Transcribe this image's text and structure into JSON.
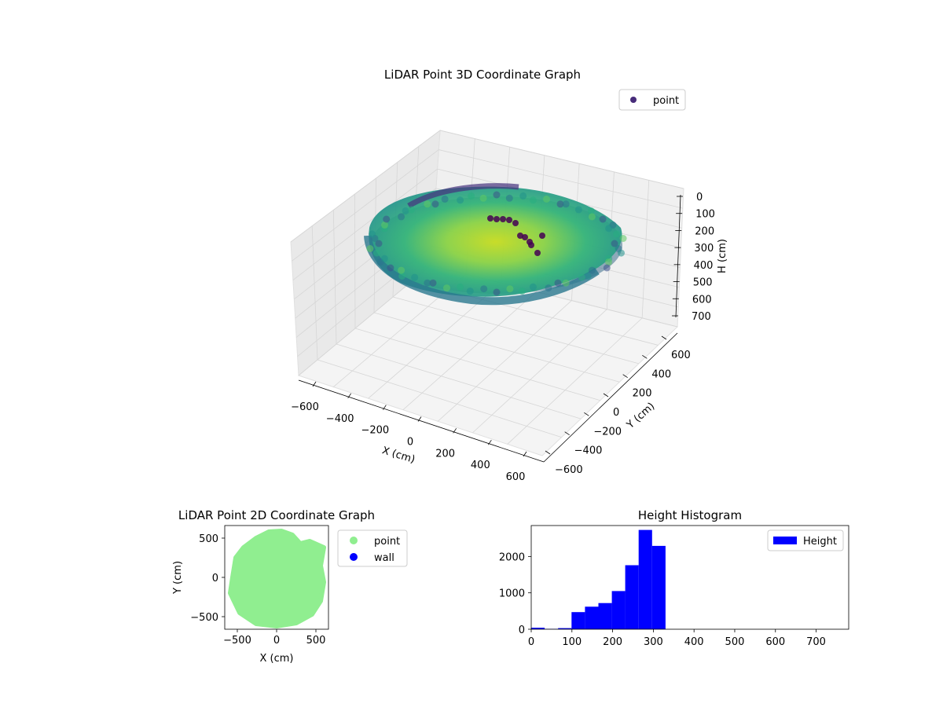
{
  "chart_data": [
    {
      "type": "scatter3d",
      "title": "LiDAR Point 3D Coordinate Graph",
      "xlabel": "X (cm)",
      "ylabel": "Y (cm)",
      "zlabel": "H (cm)",
      "xticks": [
        "−600",
        "−400",
        "−200",
        "0",
        "200",
        "400",
        "600"
      ],
      "yticks": [
        "−600",
        "−400",
        "−200",
        "0",
        "200",
        "400",
        "600"
      ],
      "zticks": [
        "0",
        "100",
        "200",
        "300",
        "400",
        "500",
        "600",
        "700"
      ],
      "xlim": [
        -650,
        650
      ],
      "ylim": [
        -650,
        650
      ],
      "zlim": [
        0,
        750
      ],
      "z_inverted": true,
      "grid": true,
      "legend": {
        "placement": "top-right",
        "entries": [
          {
            "label": "point",
            "color": "#472c7a"
          }
        ]
      },
      "colormap": "viridis",
      "series": [
        {
          "name": "point",
          "description_points": [
            {
              "x": -500,
              "y": 0,
              "h": 280
            },
            {
              "x": 0,
              "y": -450,
              "h": 260
            },
            {
              "x": 450,
              "y": 0,
              "h": 290
            },
            {
              "x": 0,
              "y": 500,
              "h": 100
            },
            {
              "x": 0,
              "y": 0,
              "h": 320
            }
          ]
        }
      ]
    },
    {
      "type": "scatter",
      "title": "LiDAR Point 2D Coordinate Graph",
      "xlabel": "X (cm)",
      "ylabel": "Y (cm)",
      "xticks": [
        -500,
        0,
        500
      ],
      "yticks": [
        -500,
        0,
        500
      ],
      "xlim": [
        -660,
        660
      ],
      "ylim": [
        -660,
        660
      ],
      "legend": {
        "placement": "outside-right",
        "entries": [
          {
            "label": "point",
            "color": "#90ee90"
          },
          {
            "label": "wall",
            "color": "#0000ff"
          }
        ]
      },
      "series": [
        {
          "name": "point",
          "color": "#90ee90",
          "outline": [
            [
              -560,
              0
            ],
            [
              -520,
              250
            ],
            [
              -420,
              380
            ],
            [
              -260,
              500
            ],
            [
              -100,
              580
            ],
            [
              60,
              590
            ],
            [
              200,
              540
            ],
            [
              300,
              430
            ],
            [
              420,
              460
            ],
            [
              600,
              380
            ],
            [
              560,
              150
            ],
            [
              600,
              -60
            ],
            [
              560,
              -300
            ],
            [
              450,
              -470
            ],
            [
              250,
              -580
            ],
            [
              0,
              -620
            ],
            [
              -260,
              -590
            ],
            [
              -470,
              -450
            ],
            [
              -590,
              -200
            ]
          ]
        },
        {
          "name": "wall",
          "color": "#0000ff",
          "points": []
        }
      ]
    },
    {
      "type": "bar",
      "title": "Height Histogram",
      "xlabel": "",
      "ylabel": "",
      "xticks": [
        0,
        100,
        200,
        300,
        400,
        500,
        600,
        700
      ],
      "yticks": [
        0,
        1000,
        2000
      ],
      "xlim": [
        0,
        780
      ],
      "ylim": [
        0,
        2850
      ],
      "legend": {
        "placement": "top-right",
        "entries": [
          {
            "label": "Height",
            "color": "#0000ff"
          }
        ]
      },
      "series": [
        {
          "name": "Height",
          "color": "#0000ff",
          "bins": [
            {
              "start": 0,
              "end": 33,
              "count": 40
            },
            {
              "start": 33,
              "end": 66,
              "count": 10
            },
            {
              "start": 66,
              "end": 99,
              "count": 30
            },
            {
              "start": 99,
              "end": 132,
              "count": 470
            },
            {
              "start": 132,
              "end": 165,
              "count": 620
            },
            {
              "start": 165,
              "end": 198,
              "count": 720
            },
            {
              "start": 198,
              "end": 231,
              "count": 1050
            },
            {
              "start": 231,
              "end": 264,
              "count": 1760
            },
            {
              "start": 264,
              "end": 297,
              "count": 2730
            },
            {
              "start": 297,
              "end": 330,
              "count": 2290
            }
          ]
        }
      ]
    }
  ]
}
